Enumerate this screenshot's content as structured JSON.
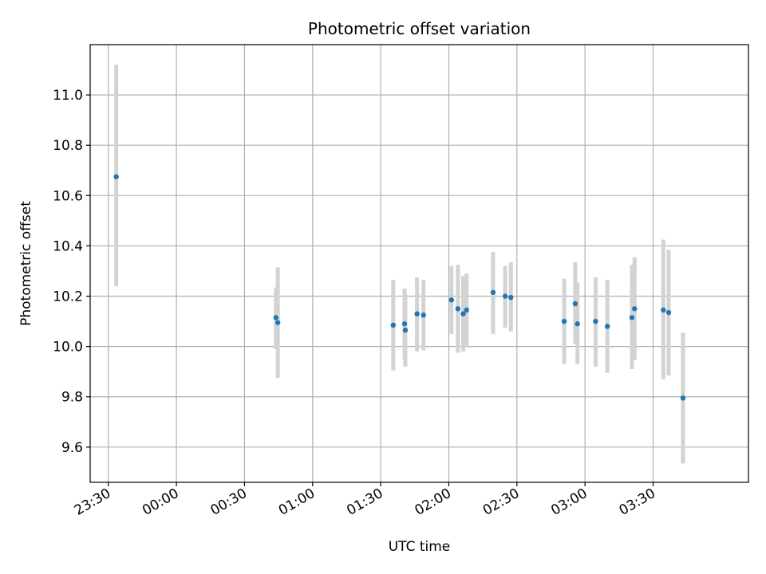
{
  "chart_data": {
    "type": "scatter",
    "title": "Photometric offset variation",
    "xlabel": "UTC time",
    "ylabel": "Photometric offset",
    "x_axis_kind": "utc-time-of-day",
    "xlim": [
      "23:22",
      "04:12"
    ],
    "ylim": [
      9.46,
      11.2
    ],
    "x_ticks": [
      "23:30",
      "00:00",
      "00:30",
      "01:00",
      "01:30",
      "02:00",
      "02:30",
      "03:00",
      "03:30"
    ],
    "y_ticks": [
      "9.6",
      "9.8",
      "10.0",
      "10.2",
      "10.4",
      "10.6",
      "10.8",
      "11.0"
    ],
    "grid": true,
    "marker_color": "#1f77b4",
    "errorbar_color": "#d3d3d3",
    "points": [
      {
        "x": "23:33:30",
        "y": 10.675,
        "low": 10.24,
        "high": 11.12
      },
      {
        "x": "00:43:50",
        "y": 10.115,
        "low": 9.99,
        "high": 10.235
      },
      {
        "x": "00:44:40",
        "y": 10.095,
        "low": 9.875,
        "high": 10.315
      },
      {
        "x": "01:35:30",
        "y": 10.085,
        "low": 9.905,
        "high": 10.265
      },
      {
        "x": "01:40:30",
        "y": 10.09,
        "low": 9.95,
        "high": 10.23
      },
      {
        "x": "01:40:50",
        "y": 10.065,
        "low": 9.92,
        "high": 10.21
      },
      {
        "x": "01:46:00",
        "y": 10.13,
        "low": 9.98,
        "high": 10.275
      },
      {
        "x": "01:48:50",
        "y": 10.125,
        "low": 9.985,
        "high": 10.265
      },
      {
        "x": "02:01:10",
        "y": 10.185,
        "low": 10.05,
        "high": 10.32
      },
      {
        "x": "02:04:00",
        "y": 10.15,
        "low": 9.975,
        "high": 10.325
      },
      {
        "x": "02:06:20",
        "y": 10.13,
        "low": 9.98,
        "high": 10.28
      },
      {
        "x": "02:07:50",
        "y": 10.145,
        "low": 10.0,
        "high": 10.29
      },
      {
        "x": "02:19:30",
        "y": 10.215,
        "low": 10.05,
        "high": 10.375
      },
      {
        "x": "02:24:50",
        "y": 10.2,
        "low": 10.075,
        "high": 10.32
      },
      {
        "x": "02:27:20",
        "y": 10.195,
        "low": 10.06,
        "high": 10.335
      },
      {
        "x": "02:50:50",
        "y": 10.1,
        "low": 9.93,
        "high": 10.27
      },
      {
        "x": "02:55:40",
        "y": 10.17,
        "low": 10.01,
        "high": 10.335
      },
      {
        "x": "02:56:40",
        "y": 10.09,
        "low": 9.93,
        "high": 10.255
      },
      {
        "x": "03:04:40",
        "y": 10.1,
        "low": 9.92,
        "high": 10.275
      },
      {
        "x": "03:09:50",
        "y": 10.08,
        "low": 9.895,
        "high": 10.265
      },
      {
        "x": "03:20:40",
        "y": 10.115,
        "low": 9.91,
        "high": 10.325
      },
      {
        "x": "03:21:50",
        "y": 10.15,
        "low": 9.945,
        "high": 10.355
      },
      {
        "x": "03:34:30",
        "y": 10.145,
        "low": 9.87,
        "high": 10.425
      },
      {
        "x": "03:36:50",
        "y": 10.135,
        "low": 9.885,
        "high": 10.385
      },
      {
        "x": "03:43:10",
        "y": 9.795,
        "low": 9.535,
        "high": 10.055
      }
    ]
  }
}
